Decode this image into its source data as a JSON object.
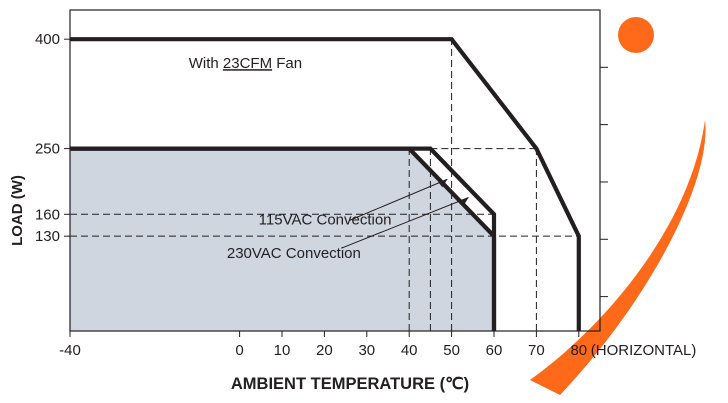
{
  "chart_data": {
    "type": "line",
    "title": "",
    "xlabel": "AMBIENT TEMPERATURE (℃)",
    "ylabel": "LOAD (W)",
    "x_axis_note": "(HORIZONTAL)",
    "xlim": [
      -40,
      85
    ],
    "ylim": [
      0,
      440
    ],
    "x_ticks": [
      -40,
      0,
      10,
      20,
      30,
      40,
      50,
      60,
      70,
      80
    ],
    "y_ticks": [
      130,
      160,
      250,
      400
    ],
    "grid": false,
    "series": [
      {
        "name": "With 23CFM Fan",
        "label_prefix": "With ",
        "label_underlined": "23CFM",
        "label_suffix": " Fan",
        "points": [
          [
            -40,
            400
          ],
          [
            50,
            400
          ],
          [
            70,
            250
          ],
          [
            80,
            130
          ],
          [
            80,
            0
          ]
        ]
      },
      {
        "name": "115VAC Convection",
        "points": [
          [
            -40,
            250
          ],
          [
            45,
            250
          ],
          [
            60,
            160
          ],
          [
            60,
            0
          ]
        ]
      },
      {
        "name": "230VAC Convection",
        "points": [
          [
            -40,
            250
          ],
          [
            40,
            250
          ],
          [
            60,
            130
          ],
          [
            60,
            0
          ]
        ]
      }
    ],
    "reference_lines": {
      "horizontal": [
        {
          "y": 160,
          "x_from": -40,
          "x_to": 60
        },
        {
          "y": 130,
          "x_from": -40,
          "x_to": 80
        },
        {
          "y": 250,
          "x_from": 45,
          "x_to": 70
        }
      ],
      "vertical": [
        {
          "x": 40,
          "y_from": 0,
          "y_to": 250
        },
        {
          "x": 45,
          "y_from": 0,
          "y_to": 250
        },
        {
          "x": 50,
          "y_from": 0,
          "y_to": 400
        },
        {
          "x": 70,
          "y_from": 0,
          "y_to": 250
        }
      ]
    },
    "shaded_region": "230VAC Convection",
    "colors": {
      "line": "#231f20",
      "shade": "#d0d6e0",
      "frame": "#231f20",
      "watermark": "#ff6a1a"
    }
  }
}
